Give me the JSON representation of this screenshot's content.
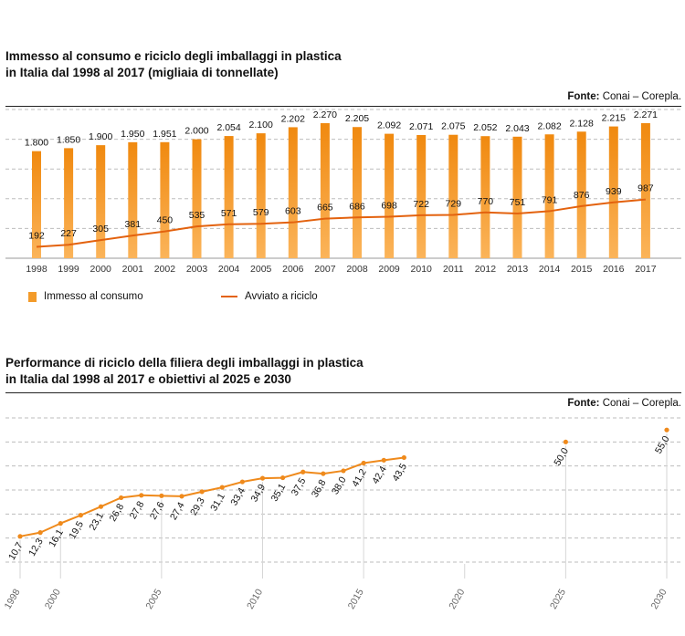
{
  "chart1": {
    "title_line1": "Immesso al consumo e riciclo degli imballaggi in plastica",
    "title_line2": "in Italia dal 1998 al 2017 (migliaia di tonnellate)",
    "source_label": "Fonte:",
    "source_value": "Conai – Corepla."
  },
  "chart2": {
    "title_line1": "Performance di riciclo della filiera degli imballaggi in plastica",
    "title_line2": "in Italia dal 1998 al 2017 e obiettivi al 2025 e 2030",
    "source_label": "Fonte:",
    "source_value": "Conai – Corepla."
  },
  "legend": {
    "bar_label": "Immesso al consumo",
    "line_label": "Avviato a riciclo"
  },
  "colors": {
    "bar_top": "#f0890f",
    "bar_bottom": "#fbb45a",
    "line": "#e3620e",
    "point": "#ef8a1c",
    "grid": "#bdbdbd"
  },
  "chart_data": [
    {
      "type": "bar",
      "categories": [
        "1998",
        "1999",
        "2000",
        "2001",
        "2002",
        "2003",
        "2004",
        "2005",
        "2006",
        "2007",
        "2008",
        "2009",
        "2010",
        "2011",
        "2012",
        "2013",
        "2014",
        "2015",
        "2016",
        "2017"
      ],
      "series": [
        {
          "name": "Immesso al consumo",
          "type": "bar",
          "values": [
            1800,
            1850,
            1900,
            1950,
            1951,
            2000,
            2054,
            2100,
            2202,
            2270,
            2205,
            2092,
            2071,
            2075,
            2052,
            2043,
            2082,
            2128,
            2215,
            2271
          ],
          "labels": [
            "1.800",
            "1.850",
            "1.900",
            "1.950",
            "1.951",
            "2.000",
            "2.054",
            "2.100",
            "2.202",
            "2.270",
            "2.205",
            "2.092",
            "2.071",
            "2.075",
            "2.052",
            "2.043",
            "2.082",
            "2.128",
            "2.215",
            "2.271"
          ]
        },
        {
          "name": "Avviato a riciclo",
          "type": "line",
          "values": [
            192,
            227,
            305,
            381,
            450,
            535,
            571,
            579,
            603,
            665,
            686,
            698,
            722,
            729,
            770,
            751,
            791,
            876,
            939,
            987
          ],
          "labels": [
            "192",
            "227",
            "305",
            "381",
            "450",
            "535",
            "571",
            "579",
            "603",
            "665",
            "686",
            "698",
            "722",
            "729",
            "770",
            "751",
            "791",
            "876",
            "939",
            "987"
          ]
        }
      ],
      "ylim": [
        0,
        2500
      ],
      "grid": true,
      "legend_position": "bottom-left"
    },
    {
      "type": "line",
      "x": [
        1998,
        1999,
        2000,
        2001,
        2002,
        2003,
        2004,
        2005,
        2006,
        2007,
        2008,
        2009,
        2010,
        2011,
        2012,
        2013,
        2014,
        2015,
        2016,
        2017
      ],
      "values": [
        10.7,
        12.3,
        16.1,
        19.5,
        23.1,
        26.8,
        27.8,
        27.6,
        27.4,
        29.3,
        31.1,
        33.4,
        34.9,
        35.1,
        37.5,
        36.8,
        38.0,
        41.2,
        42.4,
        43.5
      ],
      "labels": [
        "10,7",
        "12,3",
        "16,1",
        "19,5",
        "23,1",
        "26,8",
        "27,8",
        "27,6",
        "27,4",
        "29,3",
        "31,1",
        "33,4",
        "34,9",
        "35,1",
        "37,5",
        "36,8",
        "38,0",
        "41,2",
        "42,4",
        "43,5"
      ],
      "targets": [
        {
          "x": 2025,
          "value": 50.0,
          "label": "50,0"
        },
        {
          "x": 2030,
          "value": 55.0,
          "label": "55,0"
        }
      ],
      "x_ticks": [
        1998,
        2000,
        2005,
        2010,
        2015,
        2020,
        2025,
        2030
      ],
      "x_tick_labels": [
        "1998",
        "2000",
        "2005",
        "2010",
        "2015",
        "2020",
        "2025",
        "2030"
      ],
      "xlim": [
        1998,
        2030
      ],
      "ylim": [
        0,
        60
      ],
      "grid": true
    }
  ]
}
